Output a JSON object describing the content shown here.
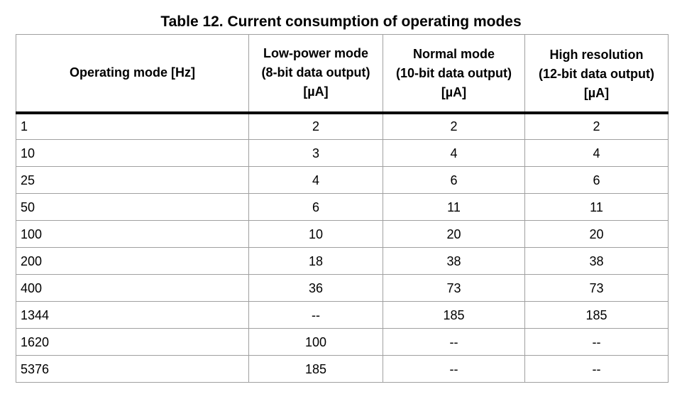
{
  "title": "Table 12. Current consumption of operating modes",
  "table": {
    "headers": [
      [
        "Operating mode [Hz]"
      ],
      [
        "Low-power mode",
        "(8-bit data output)",
        "[µA]"
      ],
      [
        "Normal mode",
        "(10-bit data output)",
        "[µA]"
      ],
      [
        "High resolution",
        "(12-bit data output)",
        "[µA]"
      ]
    ],
    "rows": [
      [
        "1",
        "2",
        "2",
        "2"
      ],
      [
        "10",
        "3",
        "4",
        "4"
      ],
      [
        "25",
        "4",
        "6",
        "6"
      ],
      [
        "50",
        "6",
        "11",
        "11"
      ],
      [
        "100",
        "10",
        "20",
        "20"
      ],
      [
        "200",
        "18",
        "38",
        "38"
      ],
      [
        "400",
        "36",
        "73",
        "73"
      ],
      [
        "1344",
        "--",
        "185",
        "185"
      ],
      [
        "1620",
        "100",
        "--",
        "--"
      ],
      [
        "5376",
        "185",
        "--",
        "--"
      ]
    ]
  }
}
